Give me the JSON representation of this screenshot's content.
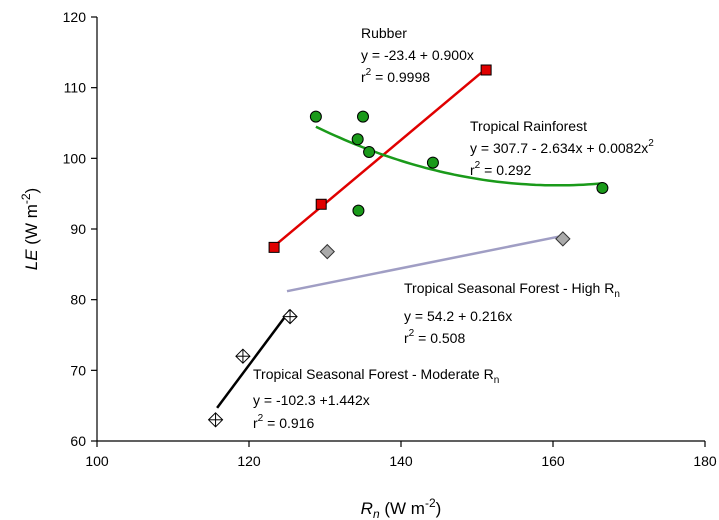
{
  "chart_data": {
    "type": "scatter",
    "title": "",
    "xlabel": {
      "main": "R",
      "sub": "n",
      "unit_pre": " (W m",
      "unit_sup": "-2",
      "unit_post": ")"
    },
    "ylabel": {
      "main": "LE",
      "unit_pre": " (W m",
      "unit_sup": "-2",
      "unit_post": ")"
    },
    "xlim": [
      100,
      180
    ],
    "ylim": [
      60,
      120
    ],
    "xticks": [
      100,
      120,
      140,
      160,
      180
    ],
    "yticks": [
      60,
      70,
      80,
      90,
      100,
      110,
      120
    ],
    "grid": false,
    "series": [
      {
        "name": "Rubber",
        "marker": "square",
        "marker_color": "#e00000",
        "line_color": "#e00000",
        "points": [
          [
            123.3,
            87.4
          ],
          [
            129.5,
            93.5
          ],
          [
            151.2,
            112.5
          ]
        ],
        "fit": {
          "type": "linear",
          "a": -23.4,
          "b": 0.9,
          "x_range": [
            123.3,
            151.2
          ]
        },
        "annotation": {
          "title": "Rubber",
          "equation": "y = -23.4 + 0.900x",
          "r2_pre": "r",
          "r2_sup": "2",
          "r2_post": " = 0.9998"
        }
      },
      {
        "name": "Tropical Rainforest",
        "marker": "circle",
        "marker_color": "#1a9a1a",
        "line_color": "#1a9a1a",
        "points": [
          [
            128.8,
            105.9
          ],
          [
            135.0,
            105.9
          ],
          [
            134.3,
            102.7
          ],
          [
            135.8,
            100.9
          ],
          [
            144.2,
            99.4
          ],
          [
            166.5,
            95.8
          ],
          [
            134.4,
            92.6
          ]
        ],
        "fit": {
          "type": "quadratic",
          "a": 307.7,
          "b": -2.634,
          "c": 0.0082,
          "x_range": [
            128.8,
            166.5
          ]
        },
        "annotation": {
          "title": "Tropical Rainforest",
          "equation_pre": "y = 307.7 - 2.634x + 0.0082x",
          "equation_sup": "2",
          "r2_pre": "r",
          "r2_sup": "2",
          "r2_post": " = 0.292"
        }
      },
      {
        "name": "Tropical Seasonal Forest - High R",
        "name_sub": "n",
        "marker": "diamond",
        "marker_color": "#aaaaaa",
        "line_color": "#a09ec4",
        "points": [
          [
            130.3,
            86.8
          ],
          [
            161.3,
            88.6
          ]
        ],
        "fit": {
          "type": "linear",
          "a": 54.2,
          "b": 0.216,
          "x_range": [
            125.0,
            161.3
          ]
        },
        "annotation": {
          "title_pre": "Tropical Seasonal Forest - High R",
          "title_sub": "n",
          "equation": "y = 54.2 + 0.216x",
          "r2_pre": "r",
          "r2_sup": "2",
          "r2_post": " = 0.508"
        }
      },
      {
        "name": "Tropical Seasonal Forest - Moderate R",
        "name_sub": "n",
        "marker": "crossed-diamond",
        "marker_color": "#ffffff",
        "line_color": "#000000",
        "points": [
          [
            115.6,
            63.0
          ],
          [
            119.2,
            72.0
          ],
          [
            125.4,
            77.6
          ]
        ],
        "fit": {
          "type": "linear",
          "a": -102.3,
          "b": 1.442,
          "x_range": [
            115.8,
            125.4
          ]
        },
        "annotation": {
          "title_pre": "Tropical Seasonal Forest - Moderate R",
          "title_sub": "n",
          "equation": "y = -102.3 +1.442x",
          "r2_pre": "r",
          "r2_sup": "2",
          "r2_post": " = 0.916"
        }
      }
    ]
  }
}
